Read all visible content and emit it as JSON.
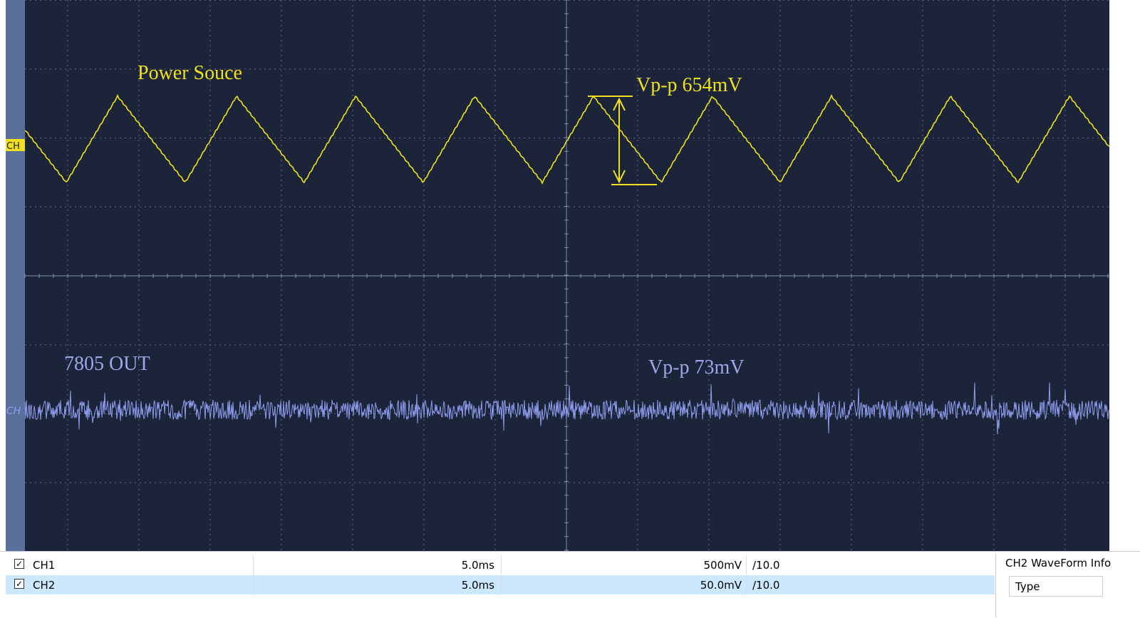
{
  "screen": {
    "channel_markers": [
      "CH",
      "CH"
    ],
    "annotations": {
      "ch1_label": "Power Souce",
      "ch1_vpp": "Vp-p 654mV",
      "ch2_label": "7805 OUT",
      "ch2_vpp": "Vp-p 73mV"
    }
  },
  "channels": {
    "rows": [
      {
        "name": "CH1",
        "timebase": "5.0ms",
        "scale": "500mV",
        "probe": "/10.0"
      },
      {
        "name": "CH2",
        "timebase": "5.0ms",
        "scale": "50.0mV",
        "probe": "/10.0"
      }
    ]
  },
  "info_panel": {
    "title": "CH2 WaveForm Info",
    "field": "Type"
  }
}
